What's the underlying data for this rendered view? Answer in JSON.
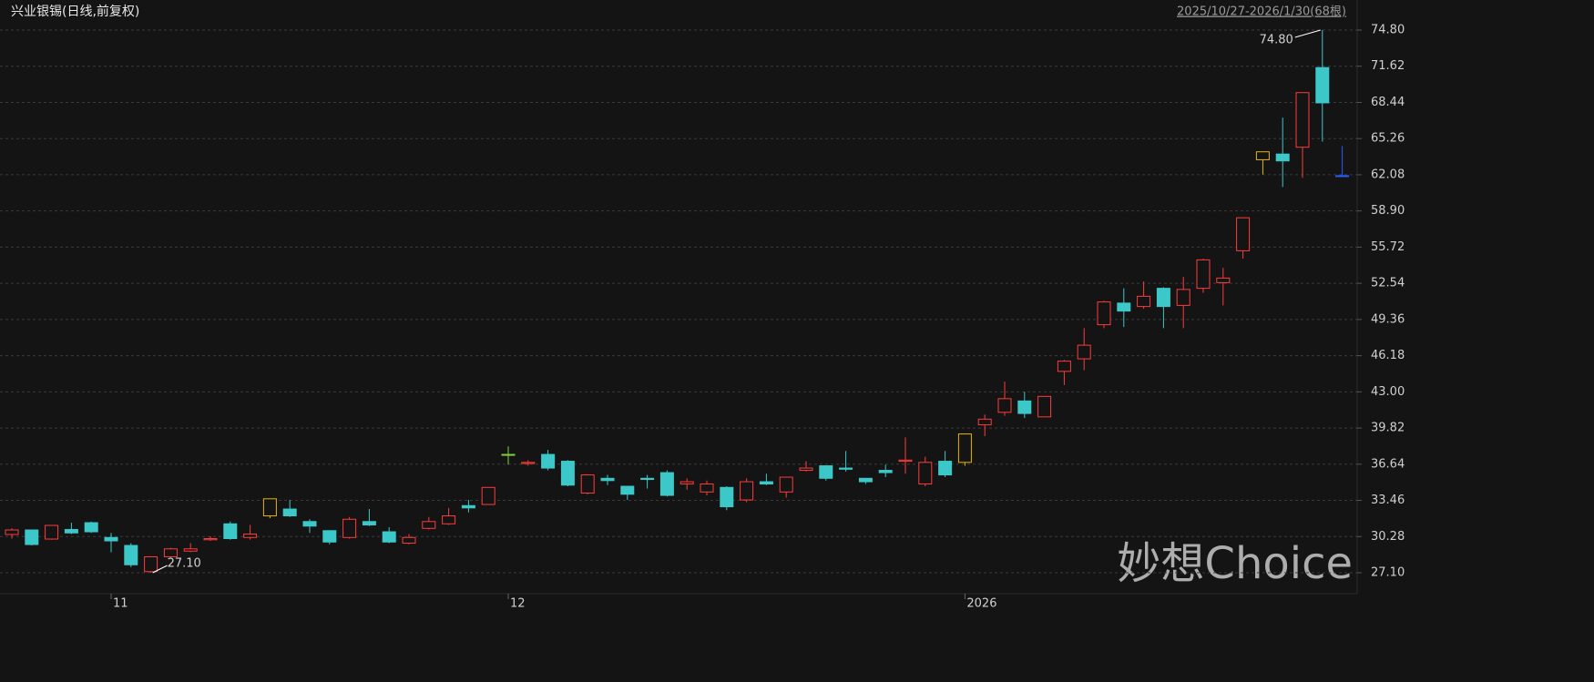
{
  "chart_data": {
    "type": "candlestick",
    "title": "兴业银锡(日线,前复权)",
    "subtitle": "2025/10/27-2026/1/30(68根)",
    "watermark": "妙想Choice",
    "categories": [
      null,
      null,
      null,
      null,
      null,
      "11",
      null,
      null,
      null,
      null,
      null,
      null,
      null,
      null,
      null,
      null,
      null,
      null,
      null,
      null,
      null,
      null,
      null,
      null,
      null,
      "12",
      null,
      null,
      null,
      null,
      null,
      null,
      null,
      null,
      null,
      null,
      null,
      null,
      null,
      null,
      null,
      null,
      null,
      null,
      null,
      null,
      null,
      null,
      "2026",
      null,
      null,
      null,
      null,
      null,
      null,
      null,
      null,
      null,
      null,
      null,
      null,
      null,
      null,
      null,
      null,
      null,
      null,
      null
    ],
    "open": [
      30.46,
      30.86,
      30.06,
      30.9,
      31.5,
      30.2,
      29.5,
      27.2,
      28.5,
      29.0,
      30.0,
      31.4,
      30.2,
      32.1,
      32.7,
      31.6,
      30.8,
      30.2,
      31.6,
      30.7,
      29.7,
      31.0,
      31.4,
      33.0,
      33.1,
      37.5,
      36.7,
      37.5,
      36.9,
      34.1,
      35.4,
      34.7,
      35.4,
      35.9,
      34.9,
      34.2,
      34.6,
      33.5,
      35.1,
      34.2,
      36.1,
      36.5,
      36.3,
      35.4,
      36.1,
      36.9,
      34.9,
      36.9,
      36.8,
      40.1,
      41.2,
      42.2,
      40.8,
      44.8,
      45.9,
      48.9,
      50.8,
      50.5,
      52.1,
      50.6,
      52.1,
      52.6,
      55.4,
      63.4,
      63.9,
      64.5,
      71.5,
      62.0
    ],
    "close": [
      30.86,
      29.58,
      31.26,
      30.6,
      30.7,
      29.9,
      27.8,
      28.5,
      29.2,
      29.2,
      30.1,
      30.1,
      30.5,
      33.6,
      32.1,
      31.2,
      29.8,
      31.8,
      31.3,
      29.8,
      30.2,
      31.6,
      32.1,
      32.8,
      34.6,
      37.5,
      36.8,
      36.3,
      34.8,
      35.7,
      35.2,
      34.0,
      35.3,
      33.9,
      35.1,
      34.9,
      32.9,
      35.1,
      34.9,
      35.5,
      36.3,
      35.4,
      36.2,
      35.1,
      35.9,
      37.0,
      36.8,
      35.7,
      39.3,
      40.6,
      42.4,
      41.1,
      42.6,
      45.7,
      47.1,
      50.9,
      50.1,
      51.4,
      50.5,
      52.0,
      54.6,
      53.0,
      58.3,
      64.1,
      63.3,
      69.3,
      68.4,
      62.0
    ],
    "high": [
      31.0,
      30.9,
      31.3,
      31.5,
      31.6,
      30.6,
      29.7,
      28.5,
      29.3,
      29.7,
      30.3,
      31.6,
      31.3,
      33.6,
      33.5,
      31.8,
      30.8,
      32.0,
      32.7,
      31.1,
      30.5,
      32.0,
      32.8,
      33.5,
      34.6,
      38.2,
      37.0,
      37.9,
      37.0,
      35.7,
      35.7,
      34.7,
      35.7,
      36.1,
      35.4,
      35.2,
      34.7,
      35.4,
      35.8,
      35.5,
      36.9,
      36.5,
      37.8,
      35.4,
      36.6,
      39.0,
      37.3,
      37.8,
      39.3,
      41.0,
      43.9,
      43.0,
      42.6,
      45.8,
      48.6,
      51.0,
      52.1,
      52.7,
      52.2,
      53.1,
      54.7,
      53.9,
      58.3,
      64.1,
      67.1,
      69.3,
      74.8,
      64.6
    ],
    "low": [
      30.1,
      29.5,
      30.0,
      30.5,
      30.6,
      28.9,
      27.6,
      27.1,
      28.4,
      28.9,
      29.9,
      30.0,
      30.0,
      31.9,
      32.0,
      30.6,
      29.6,
      30.1,
      31.2,
      29.7,
      29.6,
      30.9,
      31.3,
      32.4,
      33.1,
      36.6,
      36.5,
      36.1,
      34.7,
      34.0,
      34.8,
      33.5,
      34.5,
      33.8,
      34.4,
      33.9,
      32.6,
      33.3,
      34.8,
      33.7,
      36.0,
      35.2,
      36.0,
      34.9,
      35.5,
      35.8,
      34.7,
      35.5,
      36.5,
      39.1,
      40.9,
      40.7,
      40.8,
      43.6,
      44.9,
      48.6,
      48.7,
      50.3,
      48.6,
      48.6,
      51.7,
      50.6,
      54.7,
      62.1,
      61.0,
      61.8,
      65.0,
      62.0
    ],
    "colors": [
      "#ff3b3b",
      "#3cc8c8",
      "#ff3b3b",
      "#3cc8c8",
      "#3cc8c8",
      "#3cc8c8",
      "#3cc8c8",
      "#ff3b3b",
      "#ff3b3b",
      "#ff3b3b",
      "#ff3b3b",
      "#3cc8c8",
      "#ff3b3b",
      "#e6b400",
      "#3cc8c8",
      "#3cc8c8",
      "#3cc8c8",
      "#ff3b3b",
      "#3cc8c8",
      "#3cc8c8",
      "#ff3b3b",
      "#ff3b3b",
      "#ff3b3b",
      "#3cc8c8",
      "#ff3b3b",
      "#7fd13b",
      "#ff3b3b",
      "#3cc8c8",
      "#3cc8c8",
      "#ff3b3b",
      "#3cc8c8",
      "#3cc8c8",
      "#3cc8c8",
      "#3cc8c8",
      "#ff3b3b",
      "#ff3b3b",
      "#3cc8c8",
      "#ff3b3b",
      "#3cc8c8",
      "#ff3b3b",
      "#ff3b3b",
      "#3cc8c8",
      "#3cc8c8",
      "#3cc8c8",
      "#3cc8c8",
      "#ff3b3b",
      "#ff3b3b",
      "#3cc8c8",
      "#e6b400",
      "#ff3b3b",
      "#ff3b3b",
      "#3cc8c8",
      "#ff3b3b",
      "#ff3b3b",
      "#ff3b3b",
      "#ff3b3b",
      "#3cc8c8",
      "#ff3b3b",
      "#3cc8c8",
      "#ff3b3b",
      "#ff3b3b",
      "#ff3b3b",
      "#ff3b3b",
      "#e6b400",
      "#3cc8c8",
      "#ff3b3b",
      "#3cc8c8",
      "#2a5cff"
    ],
    "annotations": [
      {
        "label": "74.80",
        "value": 74.8
      },
      {
        "label": "27.10",
        "value": 27.1
      }
    ],
    "ylim": [
      25.82,
      76.24
    ],
    "yticks": [
      {
        "value": 27.1,
        "label": "27.10"
      },
      30.28,
      33.46,
      36.64,
      39.82,
      {
        "value": 43.0,
        "label": "43.00"
      },
      46.18,
      49.36,
      52.54,
      55.72,
      {
        "value": 58.9,
        "label": "58.90"
      },
      62.08,
      65.26,
      68.44,
      71.62,
      {
        "value": 74.8,
        "label": "74.80"
      }
    ],
    "grid": true
  }
}
